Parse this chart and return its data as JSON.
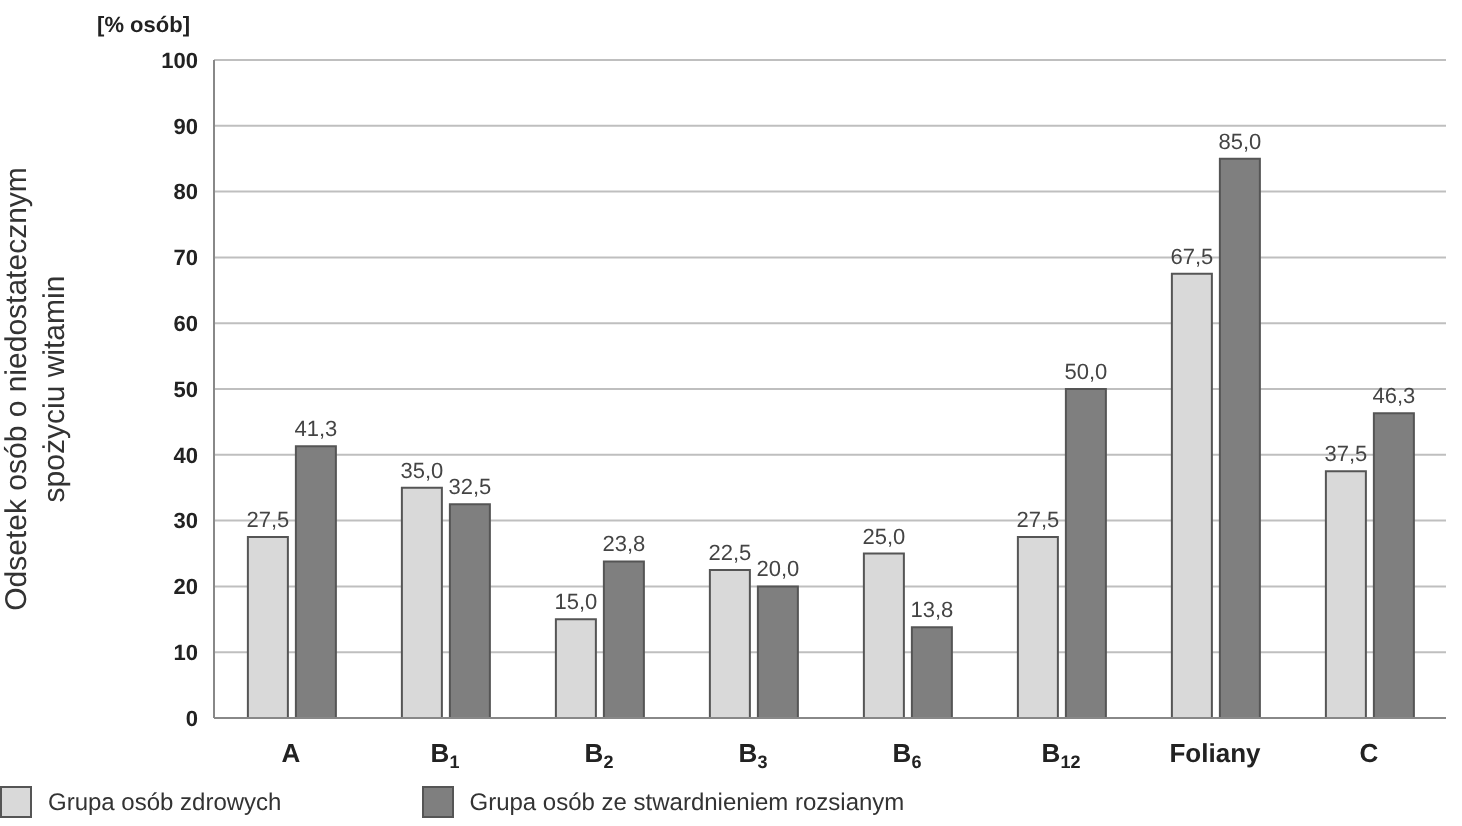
{
  "chart_data": {
    "type": "bar",
    "ylabel": "Odsetek osób o niedostatecznym spożyciu witamin",
    "annotations": [
      "[% osób]"
    ],
    "categories": [
      "A",
      "B$_{1}$",
      "B$_{2}$",
      "B$_{3}$",
      "B$_{6}$",
      "B$_{12}$",
      "Foliany",
      "C"
    ],
    "series": [
      {
        "name": "Grupa osób zdrowych",
        "color": "#d9d9d9",
        "values": [
          27.5,
          35.0,
          15.0,
          22.5,
          25.0,
          27.5,
          67.5,
          37.5
        ],
        "value_labels": [
          "27,5",
          "35,0",
          "15,0",
          "22,5",
          "25,0",
          "27,5",
          "67,5",
          "37,5"
        ]
      },
      {
        "name": "Grupa osób ze stwardnieniem rozsianym",
        "color": "#7f7f7f",
        "values": [
          41.3,
          32.5,
          23.8,
          20.0,
          13.8,
          50.0,
          85.0,
          46.3
        ],
        "value_labels": [
          "41,3",
          "32,5",
          "23,8",
          "20,0",
          "13,8",
          "50,0",
          "85,0",
          "46,3"
        ]
      }
    ],
    "ylim": [
      0,
      100
    ],
    "yticks": [
      0,
      10,
      20,
      30,
      40,
      50,
      60,
      70,
      80,
      90,
      100
    ],
    "grid": "y",
    "legend": "bottom left"
  }
}
